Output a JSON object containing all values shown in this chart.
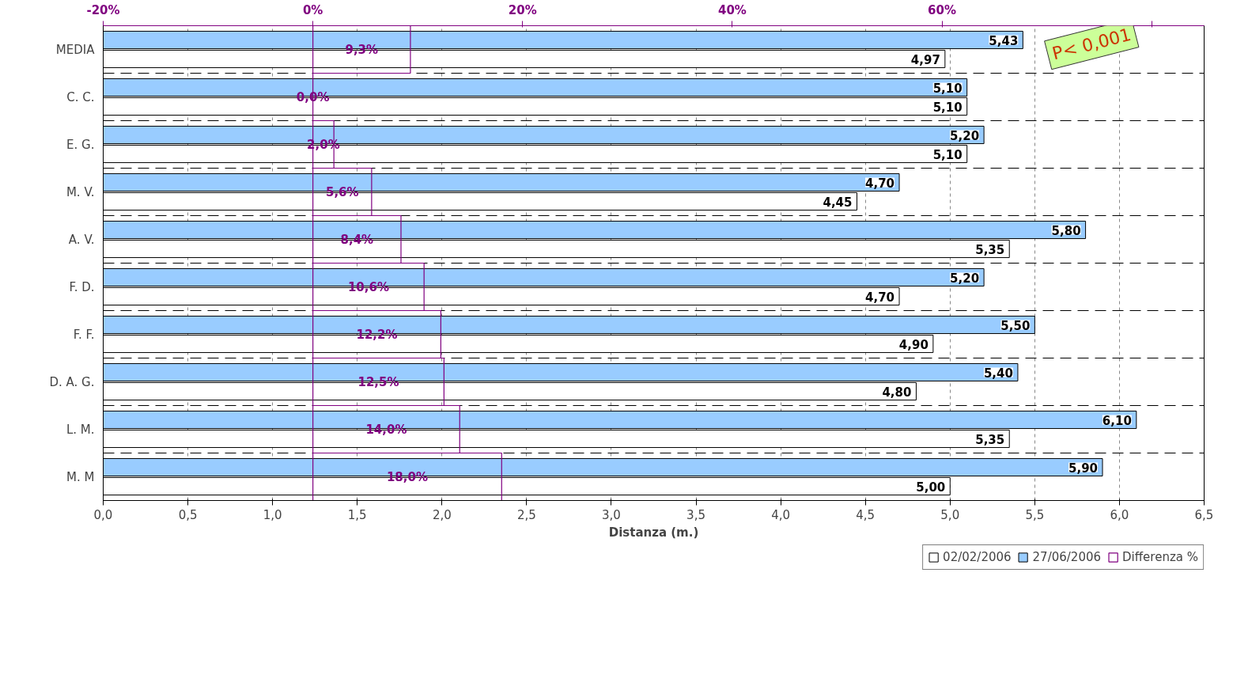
{
  "chart_data": {
    "type": "bar",
    "orientation": "horizontal",
    "xlabel": "Distanza (m.)",
    "categories": [
      "MEDIA",
      "C. C.",
      "E. G.",
      "M. V.",
      "A. V.",
      "F. D.",
      "F. F.",
      "D. A. G.",
      "L. M.",
      "M. M"
    ],
    "series": [
      {
        "name": "02/02/2006",
        "color": "#ffffff",
        "values": [
          4.97,
          5.1,
          5.1,
          4.45,
          5.35,
          4.7,
          4.9,
          4.8,
          5.35,
          5.0
        ],
        "value_labels": [
          "4,97",
          "5,10",
          "5,10",
          "4,45",
          "5,35",
          "4,70",
          "4,90",
          "4,80",
          "5,35",
          "5,00"
        ]
      },
      {
        "name": "27/06/2006",
        "color": "#99ccff",
        "values": [
          5.43,
          5.1,
          5.2,
          4.7,
          5.8,
          5.2,
          5.5,
          5.4,
          6.1,
          5.9
        ],
        "value_labels": [
          "5,43",
          "5,10",
          "5,20",
          "4,70",
          "5,80",
          "5,20",
          "5,50",
          "5,40",
          "6,10",
          "5,90"
        ]
      },
      {
        "name": "Differenza %",
        "color": "#800080",
        "axis": "x2",
        "values": [
          9.3,
          0.0,
          2.0,
          5.6,
          8.4,
          10.6,
          12.2,
          12.5,
          14.0,
          18.0
        ],
        "value_labels": [
          "9,3%",
          "0,0%",
          "2,0%",
          "5,6%",
          "8,4%",
          "10,6%",
          "12,2%",
          "12,5%",
          "14,0%",
          "18,0%"
        ]
      }
    ],
    "xlim": [
      0,
      6.5
    ],
    "xticks": [
      {
        "value": 0,
        "label": "0,0"
      },
      {
        "value": 0.5,
        "label": "0,5"
      },
      {
        "value": 1,
        "label": "1,0"
      },
      {
        "value": 1.5,
        "label": "1,5"
      },
      {
        "value": 2,
        "label": "2,0"
      },
      {
        "value": 2.5,
        "label": "2,5"
      },
      {
        "value": 3,
        "label": "3,0"
      },
      {
        "value": 3.5,
        "label": "3,5"
      },
      {
        "value": 4,
        "label": "4,0"
      },
      {
        "value": 4.5,
        "label": "4,5"
      },
      {
        "value": 5,
        "label": "5,0"
      },
      {
        "value": 5.5,
        "label": "5,5"
      },
      {
        "value": 6,
        "label": "6,0"
      },
      {
        "value": 6.5,
        "label": "6,5"
      }
    ],
    "x2lim": [
      -20,
      85
    ],
    "x2ticks": [
      {
        "value": -20,
        "label": "-20%"
      },
      {
        "value": 0,
        "label": "0%"
      },
      {
        "value": 20,
        "label": "20%"
      },
      {
        "value": 40,
        "label": "40%"
      },
      {
        "value": 60,
        "label": "60%"
      },
      {
        "value": 80,
        "label": null
      }
    ],
    "annotations": [
      "P< 0,001"
    ],
    "grid": true,
    "legend": "bottom right"
  }
}
